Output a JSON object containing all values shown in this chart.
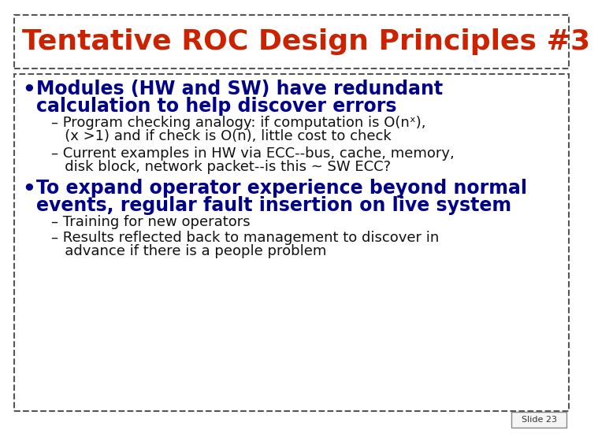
{
  "title": "Tentative ROC Design Principles #3",
  "title_color": "#CC2200",
  "slide_bg": "#FFFFFF",
  "border_color": "#555555",
  "bullet1_text_line1": "Modules (HW and SW) have redundant",
  "bullet1_text_line2": "calculation to help discover errors",
  "bullet1_color": "#000088",
  "sub1a_line1": "– Program checking analogy: if computation is O(nˣ),",
  "sub1a_line2": "   (x >1) and if check is O(n), little cost to check",
  "sub1b_line1": "– Current examples in HW via ECC--bus, cache, memory,",
  "sub1b_line2": "   disk block, network packet--is this ~ SW ECC?",
  "sub_color": "#111111",
  "bullet2_text_line1": "To expand operator experience beyond normal",
  "bullet2_text_line2": "events, regular fault insertion on live system",
  "bullet2_color": "#000088",
  "sub2a": "– Training for new operators",
  "sub2b_line1": "– Results reflected back to management to discover in",
  "sub2b_line2": "   advance if there is a people problem",
  "slide_label": "Slide 23",
  "font_family": "Comic Sans MS",
  "title_fontsize": 26,
  "bullet1_fontsize": 17,
  "bullet2_fontsize": 17,
  "sub_fontsize": 13
}
